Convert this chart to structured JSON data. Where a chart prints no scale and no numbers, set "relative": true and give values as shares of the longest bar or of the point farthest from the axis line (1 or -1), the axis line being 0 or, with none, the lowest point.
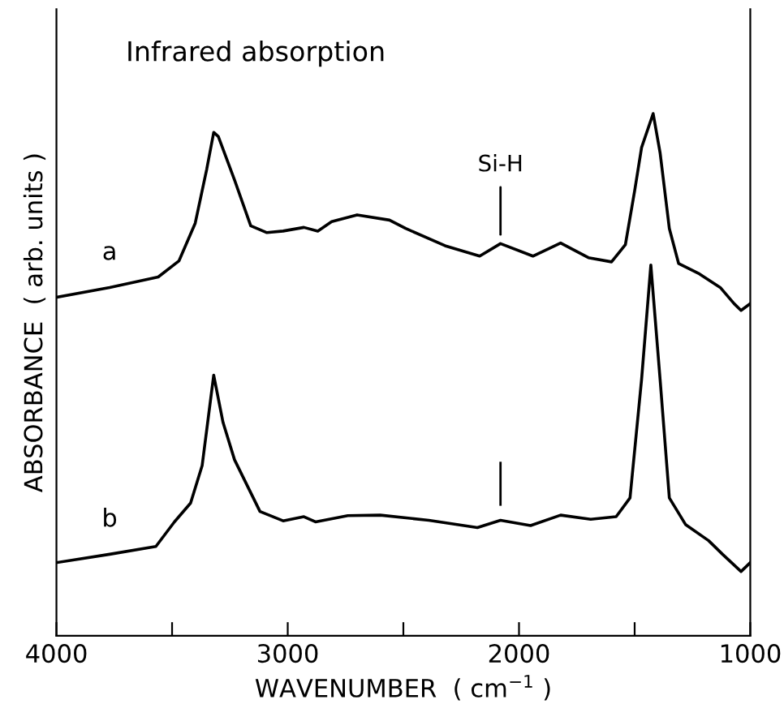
{
  "chart_data": {
    "type": "line",
    "relative": true,
    "xlabel": "WAVENUMBER  ( cm$^{−1}$ )",
    "ylabel": "ABSORBANCE  ( arb. units )",
    "annotations": [
      "Infrared absorption",
      {
        "text": "Si-H",
        "x": 2080,
        "y": 0.751
      }
    ],
    "x": [
      4000,
      3770,
      3560,
      3470,
      3400,
      3350,
      3320,
      3300,
      3230,
      3160,
      3090,
      3020,
      2930,
      2870,
      2810,
      2700,
      2560,
      2490,
      2320,
      2170,
      2080,
      1940,
      1820,
      1700,
      1600,
      1540,
      1500,
      1470,
      1420,
      1390,
      1350,
      1310,
      1220,
      1130,
      1070,
      1040,
      1000
    ],
    "series": [
      {
        "name": "a",
        "color": "#000000",
        "values": [
          0.648,
          0.667,
          0.687,
          0.718,
          0.79,
          0.894,
          0.964,
          0.956,
          0.873,
          0.785,
          0.772,
          0.775,
          0.782,
          0.775,
          0.793,
          0.806,
          0.796,
          0.78,
          0.747,
          0.727,
          0.751,
          0.727,
          0.752,
          0.724,
          0.716,
          0.749,
          0.852,
          0.935,
          1.0,
          0.925,
          0.78,
          0.713,
          0.693,
          0.667,
          0.636,
          0.623,
          0.636
        ]
      },
      {
        "name": "b",
        "color": "#000000",
        "x": [
          4000,
          3770,
          3570,
          3490,
          3420,
          3370,
          3320,
          3280,
          3230,
          3120,
          3020,
          2930,
          2880,
          2740,
          2600,
          2390,
          2180,
          2080,
          1950,
          1820,
          1690,
          1580,
          1520,
          1470,
          1430,
          1390,
          1350,
          1280,
          1180,
          1120,
          1040,
          1000
        ],
        "values": [
          0.14,
          0.156,
          0.171,
          0.218,
          0.254,
          0.326,
          0.499,
          0.409,
          0.337,
          0.238,
          0.22,
          0.228,
          0.218,
          0.23,
          0.231,
          0.221,
          0.207,
          0.221,
          0.211,
          0.231,
          0.223,
          0.228,
          0.264,
          0.491,
          0.71,
          0.491,
          0.264,
          0.213,
          0.182,
          0.156,
          0.123,
          0.14
        ]
      }
    ],
    "xlim": [
      4000,
      1000
    ],
    "xticks": [
      4000,
      {
        "value": 3500,
        "label": null
      },
      3000,
      {
        "value": 2500,
        "label": null
      },
      2000,
      {
        "value": 1500,
        "label": null
      },
      1000
    ],
    "grid": false,
    "legend": false,
    "marker": "none",
    "line_style": "solid"
  }
}
